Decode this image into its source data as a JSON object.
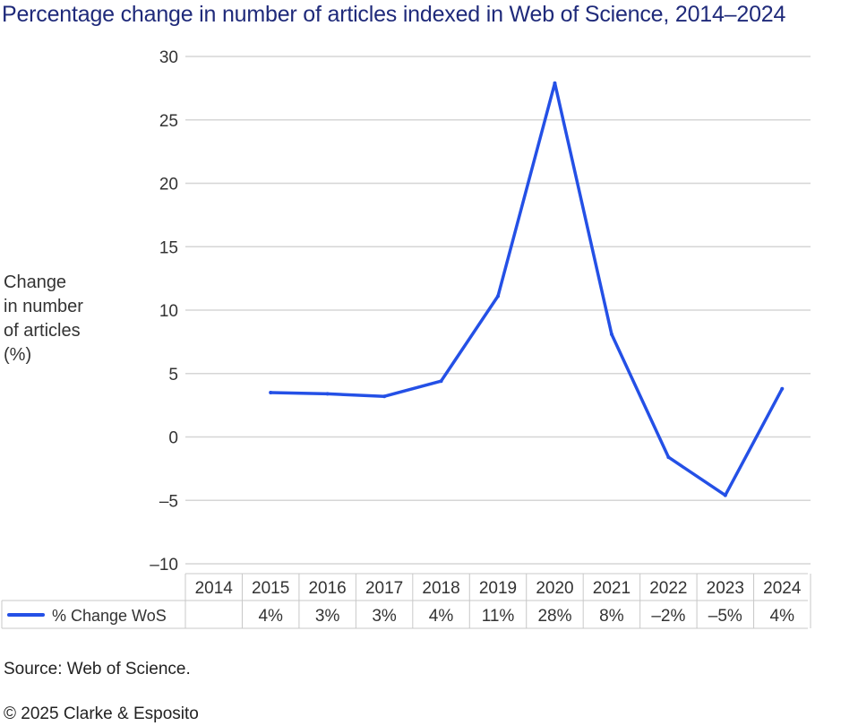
{
  "title": "Percentage change in number of articles indexed in Web of Science, 2014–2024",
  "source": "Source: Web of Science.",
  "copyright": "© 2025 Clarke & Esposito",
  "chart_data": {
    "type": "line",
    "title": "Percentage change in number of articles indexed in Web of Science, 2014–2024",
    "ylabel_lines": [
      "Change",
      "in number",
      "of articles",
      "(%)"
    ],
    "ylim": [
      -10,
      30
    ],
    "yticks": [
      30,
      25,
      20,
      15,
      10,
      5,
      0,
      -5,
      -10
    ],
    "ytick_labels": [
      "30",
      "25",
      "20",
      "15",
      "10",
      "5",
      "0",
      "–5",
      "–10"
    ],
    "grid": true,
    "categories": [
      "2014",
      "2015",
      "2016",
      "2017",
      "2018",
      "2019",
      "2020",
      "2021",
      "2022",
      "2023",
      "2024"
    ],
    "series": [
      {
        "name": "% Change WoS",
        "color": "#2450e6",
        "values": [
          null,
          3.5,
          3.4,
          3.2,
          4.4,
          11.1,
          27.9,
          8.1,
          -1.6,
          -4.6,
          3.8
        ],
        "table_labels": [
          "",
          "4%",
          "3%",
          "3%",
          "4%",
          "11%",
          "28%",
          "8%",
          "–2%",
          "–5%",
          "4%"
        ]
      }
    ]
  }
}
